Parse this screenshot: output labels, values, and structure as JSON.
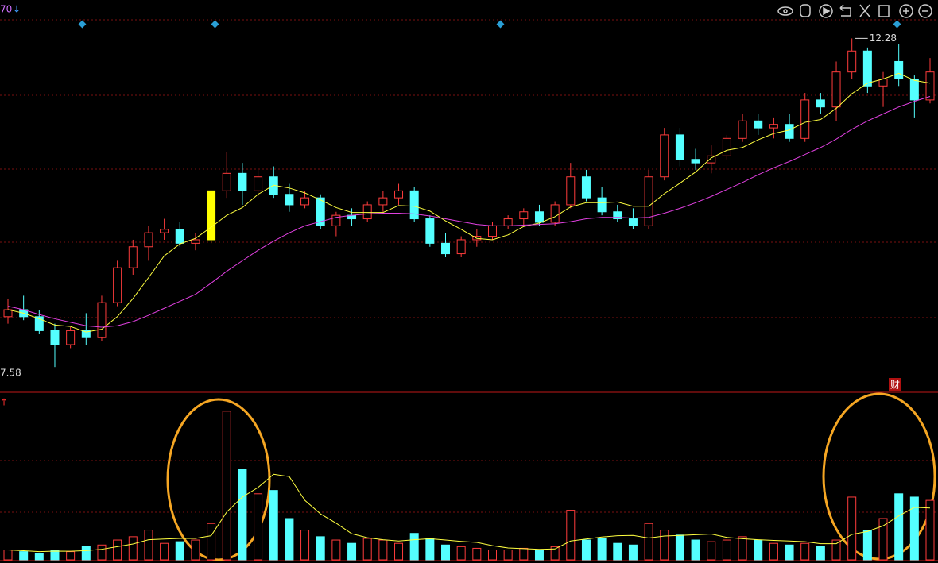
{
  "chart_data": [
    {
      "type": "candlestick",
      "corner_label": "70",
      "corner_arrow": "↓",
      "badge": "财",
      "up_color": "#ff3c3c",
      "down_color": "#54ffff",
      "highlight": 13,
      "highlight_color": "#ffff00",
      "ylim": [
        7.23,
        12.83
      ],
      "open": [
        8.3,
        8.4,
        8.3,
        8.1,
        7.9,
        8.1,
        8.0,
        8.5,
        9.0,
        9.3,
        9.5,
        9.55,
        9.35,
        9.4,
        10.1,
        10.35,
        10.1,
        10.3,
        10.05,
        9.9,
        10.0,
        9.6,
        9.75,
        9.7,
        9.9,
        10.0,
        10.1,
        9.7,
        9.35,
        9.2,
        9.4,
        9.45,
        9.6,
        9.7,
        9.8,
        9.65,
        9.9,
        10.3,
        10.0,
        9.8,
        9.7,
        9.6,
        10.3,
        10.9,
        10.55,
        10.5,
        10.6,
        10.85,
        11.1,
        11.0,
        11.05,
        10.85,
        11.4,
        11.3,
        11.8,
        12.1,
        11.6,
        11.95,
        11.7,
        11.4
      ],
      "high": [
        8.55,
        8.6,
        8.4,
        8.2,
        8.15,
        8.35,
        8.6,
        9.1,
        9.4,
        9.6,
        9.7,
        9.65,
        9.5,
        10.1,
        10.65,
        10.5,
        10.4,
        10.45,
        10.2,
        10.1,
        10.05,
        9.8,
        9.85,
        9.95,
        10.1,
        10.2,
        10.15,
        9.75,
        9.5,
        9.45,
        9.55,
        9.65,
        9.75,
        9.85,
        9.9,
        9.95,
        10.5,
        10.4,
        10.15,
        9.9,
        9.85,
        10.4,
        11.0,
        11.0,
        10.7,
        10.75,
        10.9,
        11.2,
        11.2,
        11.15,
        11.2,
        11.5,
        11.5,
        11.95,
        12.28,
        12.15,
        11.8,
        12.2,
        11.75,
        12.0
      ],
      "low": [
        8.2,
        8.25,
        8.05,
        7.58,
        7.85,
        7.9,
        7.95,
        8.45,
        8.9,
        9.1,
        9.4,
        9.3,
        9.25,
        9.35,
        10.0,
        9.9,
        10.0,
        10.0,
        9.8,
        9.85,
        9.55,
        9.45,
        9.6,
        9.65,
        9.8,
        9.9,
        9.65,
        9.3,
        9.15,
        9.15,
        9.3,
        9.4,
        9.55,
        9.6,
        9.6,
        9.6,
        9.85,
        9.95,
        9.75,
        9.65,
        9.55,
        9.55,
        10.25,
        10.45,
        10.4,
        10.35,
        10.55,
        10.8,
        10.9,
        10.85,
        10.8,
        10.8,
        11.2,
        11.1,
        11.7,
        11.5,
        11.3,
        11.6,
        11.15,
        11.35
      ],
      "close": [
        8.4,
        8.3,
        8.1,
        7.9,
        8.1,
        8.0,
        8.5,
        9.0,
        9.3,
        9.5,
        9.55,
        9.35,
        9.4,
        10.1,
        10.35,
        10.1,
        10.3,
        10.05,
        9.9,
        10.0,
        9.6,
        9.75,
        9.7,
        9.9,
        10.0,
        10.1,
        9.7,
        9.35,
        9.2,
        9.4,
        9.45,
        9.6,
        9.7,
        9.8,
        9.65,
        9.9,
        10.3,
        10.0,
        9.8,
        9.7,
        9.6,
        10.3,
        10.9,
        10.55,
        10.5,
        10.6,
        10.85,
        11.1,
        11.0,
        11.05,
        10.85,
        11.4,
        11.3,
        11.8,
        12.1,
        11.6,
        11.7,
        11.7,
        11.4,
        11.8
      ],
      "lines": [
        {
          "color": "#ffff40",
          "values": [
            8.4,
            8.35,
            8.27,
            8.18,
            8.16,
            8.08,
            8.12,
            8.3,
            8.56,
            8.86,
            9.17,
            9.34,
            9.42,
            9.58,
            9.75,
            9.86,
            10.05,
            10.18,
            10.14,
            10.07,
            9.97,
            9.86,
            9.79,
            9.79,
            9.79,
            9.89,
            9.88,
            9.81,
            9.67,
            9.55,
            9.42,
            9.4,
            9.47,
            9.59,
            9.64,
            9.73,
            9.87,
            9.93,
            9.93,
            9.94,
            9.88,
            9.88,
            10.06,
            10.21,
            10.37,
            10.57,
            10.68,
            10.72,
            10.83,
            10.92,
            10.97,
            11.08,
            11.12,
            11.28,
            11.49,
            11.64,
            11.7,
            11.78,
            11.68,
            11.64
          ]
        },
        {
          "color": "#e040e0",
          "values": [
            8.45,
            8.4,
            8.33,
            8.27,
            8.22,
            8.17,
            8.15,
            8.17,
            8.23,
            8.32,
            8.42,
            8.52,
            8.62,
            8.78,
            8.95,
            9.1,
            9.25,
            9.38,
            9.5,
            9.6,
            9.66,
            9.72,
            9.75,
            9.77,
            9.78,
            9.78,
            9.77,
            9.74,
            9.7,
            9.66,
            9.62,
            9.6,
            9.6,
            9.61,
            9.62,
            9.63,
            9.66,
            9.7,
            9.72,
            9.72,
            9.71,
            9.72,
            9.78,
            9.85,
            9.93,
            10.02,
            10.12,
            10.22,
            10.33,
            10.43,
            10.52,
            10.62,
            10.72,
            10.84,
            10.98,
            11.1,
            11.2,
            11.3,
            11.38,
            11.45
          ]
        }
      ]
    },
    {
      "type": "volume",
      "corner_arrow": "↑",
      "ylim": [
        0,
        100
      ],
      "values": [
        6,
        5,
        4,
        6,
        5,
        8,
        9,
        12,
        14,
        18,
        10,
        11,
        12,
        22,
        90,
        55,
        40,
        42,
        25,
        18,
        14,
        12,
        10,
        13,
        12,
        10,
        16,
        13,
        9,
        8,
        7,
        6,
        6,
        7,
        6,
        8,
        30,
        12,
        13,
        10,
        9,
        22,
        18,
        15,
        12,
        11,
        12,
        14,
        12,
        10,
        9,
        10,
        8,
        12,
        38,
        18,
        25,
        40,
        38,
        36
      ],
      "lines": [
        {
          "color": "#ffff40",
          "values": [
            6,
            5.5,
            5,
            5.3,
            5.2,
            5.6,
            6.4,
            8,
            9.6,
            12.2,
            12.6,
            13,
            13,
            14.6,
            29,
            38,
            43.8,
            51.8,
            50.4,
            36,
            27.8,
            22.2,
            15.8,
            13.4,
            12.2,
            11.4,
            12.2,
            12.8,
            12,
            11.2,
            10.6,
            8.6,
            7.2,
            6.8,
            6.4,
            6.6,
            11.4,
            12.6,
            13.8,
            14.6,
            14.8,
            13.2,
            14.4,
            14.8,
            15.2,
            15.6,
            13.6,
            12.8,
            12.2,
            11.8,
            11.4,
            11,
            9.8,
            9.8,
            15.4,
            17.2,
            20.6,
            26.6,
            31.8,
            31.4
          ]
        }
      ]
    }
  ]
}
